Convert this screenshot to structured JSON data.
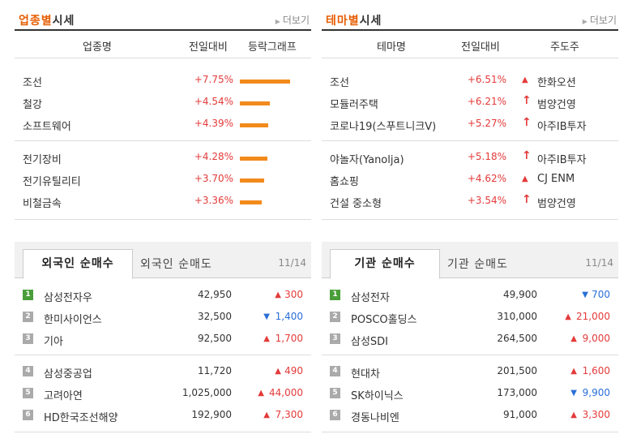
{
  "industry": {
    "title_hl": "업종별",
    "title_rest": "시세",
    "more": "더보기",
    "headers": [
      "업종명",
      "전일대비",
      "등락그래프"
    ],
    "rows": [
      {
        "name": "조선",
        "rate": "+7.75%",
        "level": 1.0
      },
      {
        "name": "철강",
        "rate": "+4.54%",
        "level": 0.59
      },
      {
        "name": "소프트웨어",
        "rate": "+4.39%",
        "level": 0.57
      },
      {
        "name": "전기장비",
        "rate": "+4.28%",
        "level": 0.55
      },
      {
        "name": "전기유틸리티",
        "rate": "+3.70%",
        "level": 0.48
      },
      {
        "name": "비철금속",
        "rate": "+3.36%",
        "level": 0.43
      }
    ]
  },
  "theme": {
    "title_hl": "테마별",
    "title_rest": "시세",
    "more": "더보기",
    "headers": [
      "테마명",
      "전일대비",
      "주도주"
    ],
    "rows": [
      {
        "name": "조선",
        "rate": "+6.51%",
        "icon": "up-triangle-icon",
        "lead": "한화오션"
      },
      {
        "name": "모듈러주택",
        "rate": "+6.21%",
        "icon": "upper-limit-arrow-icon",
        "lead": "범양건영"
      },
      {
        "name": "코로나19(스푸트니크V)",
        "rate": "+5.27%",
        "icon": "upper-limit-arrow-icon",
        "lead": "아주IB투자"
      },
      {
        "name": "야놀자(Yanolja)",
        "rate": "+5.18%",
        "icon": "upper-limit-arrow-icon",
        "lead": "아주IB투자"
      },
      {
        "name": "홈쇼핑",
        "rate": "+4.62%",
        "icon": "up-triangle-icon",
        "lead": "CJ ENM"
      },
      {
        "name": "건설 중소형",
        "rate": "+3.54%",
        "icon": "upper-limit-arrow-icon",
        "lead": "범양건영"
      }
    ]
  },
  "foreign": {
    "tab_active": "외국인 순매수",
    "tab_inactive": "외국인 순매도",
    "date": "11/14",
    "rows": [
      {
        "rank": "1",
        "name": "삼성전자우",
        "price": "42,950",
        "dir": "up",
        "chg": "300"
      },
      {
        "rank": "2",
        "name": "한미사이언스",
        "price": "32,500",
        "dir": "down",
        "chg": "1,400"
      },
      {
        "rank": "3",
        "name": "기아",
        "price": "92,500",
        "dir": "up",
        "chg": "1,700"
      },
      {
        "rank": "4",
        "name": "삼성중공업",
        "price": "11,720",
        "dir": "up",
        "chg": "490"
      },
      {
        "rank": "5",
        "name": "고려아연",
        "price": "1,025,000",
        "dir": "up",
        "chg": "44,000"
      },
      {
        "rank": "6",
        "name": "HD한국조선해양",
        "price": "192,900",
        "dir": "up",
        "chg": "7,300"
      }
    ]
  },
  "institution": {
    "tab_active": "기관 순매수",
    "tab_inactive": "기관 순매도",
    "date": "11/14",
    "rows": [
      {
        "rank": "1",
        "name": "삼성전자",
        "price": "49,900",
        "dir": "down",
        "chg": "700"
      },
      {
        "rank": "2",
        "name": "POSCO홀딩스",
        "price": "310,000",
        "dir": "up",
        "chg": "21,000"
      },
      {
        "rank": "3",
        "name": "삼성SDI",
        "price": "264,500",
        "dir": "up",
        "chg": "9,000"
      },
      {
        "rank": "4",
        "name": "현대차",
        "price": "201,500",
        "dir": "up",
        "chg": "1,600"
      },
      {
        "rank": "5",
        "name": "SK하이닉스",
        "price": "173,000",
        "dir": "down",
        "chg": "9,900"
      },
      {
        "rank": "6",
        "name": "경동나비엔",
        "price": "91,000",
        "dir": "up",
        "chg": "3,300"
      }
    ]
  }
}
